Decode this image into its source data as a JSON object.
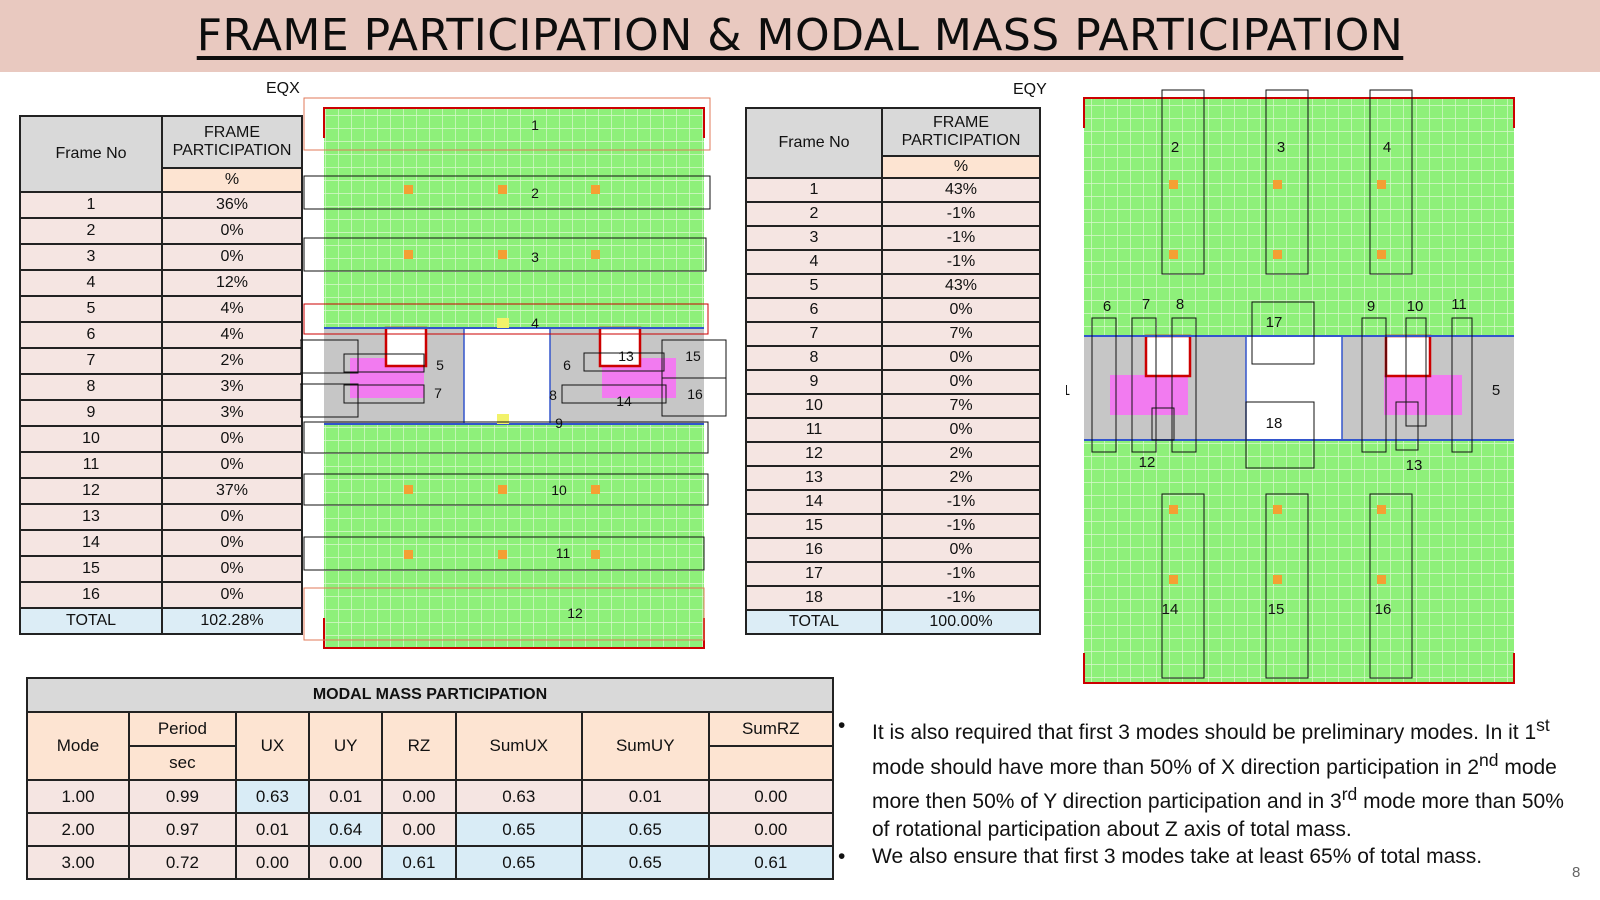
{
  "title": "FRAME PARTICIPATION & MODAL MASS PARTICIPATION",
  "eqx": {
    "caption": "EQX",
    "header": {
      "frame_no": "Frame No",
      "frame_participation": "FRAME PARTICIPATION",
      "unit": "%"
    },
    "rows": [
      {
        "frame": "1",
        "value": "36%"
      },
      {
        "frame": "2",
        "value": "0%"
      },
      {
        "frame": "3",
        "value": "0%"
      },
      {
        "frame": "4",
        "value": "12%"
      },
      {
        "frame": "5",
        "value": "4%"
      },
      {
        "frame": "6",
        "value": "4%"
      },
      {
        "frame": "7",
        "value": "2%"
      },
      {
        "frame": "8",
        "value": "3%"
      },
      {
        "frame": "9",
        "value": "3%"
      },
      {
        "frame": "10",
        "value": "0%"
      },
      {
        "frame": "11",
        "value": "0%"
      },
      {
        "frame": "12",
        "value": "37%"
      },
      {
        "frame": "13",
        "value": "0%"
      },
      {
        "frame": "14",
        "value": "0%"
      },
      {
        "frame": "15",
        "value": "0%"
      },
      {
        "frame": "16",
        "value": "0%"
      }
    ],
    "total": {
      "label": "TOTAL",
      "value": "102.28%"
    },
    "plan_labels": [
      "1",
      "2",
      "3",
      "4",
      "5",
      "6",
      "7",
      "8",
      "9",
      "10",
      "11",
      "12",
      "13",
      "14",
      "15",
      "16"
    ]
  },
  "eqy": {
    "caption": "EQY",
    "header": {
      "frame_no": "Frame No",
      "frame_participation": "FRAME PARTICIPATION",
      "unit": "%"
    },
    "rows": [
      {
        "frame": "1",
        "value": "43%"
      },
      {
        "frame": "2",
        "value": "-1%"
      },
      {
        "frame": "3",
        "value": "-1%"
      },
      {
        "frame": "4",
        "value": "-1%"
      },
      {
        "frame": "5",
        "value": "43%"
      },
      {
        "frame": "6",
        "value": "0%"
      },
      {
        "frame": "7",
        "value": "7%"
      },
      {
        "frame": "8",
        "value": "0%"
      },
      {
        "frame": "9",
        "value": "0%"
      },
      {
        "frame": "10",
        "value": "7%"
      },
      {
        "frame": "11",
        "value": "0%"
      },
      {
        "frame": "12",
        "value": "2%"
      },
      {
        "frame": "13",
        "value": "2%"
      },
      {
        "frame": "14",
        "value": "-1%"
      },
      {
        "frame": "15",
        "value": "-1%"
      },
      {
        "frame": "16",
        "value": "0%"
      },
      {
        "frame": "17",
        "value": "-1%"
      },
      {
        "frame": "18",
        "value": "-1%"
      }
    ],
    "total": {
      "label": "TOTAL",
      "value": "100.00%"
    },
    "plan_labels": [
      "1",
      "2",
      "3",
      "4",
      "5",
      "6",
      "7",
      "8",
      "9",
      "10",
      "11",
      "12",
      "13",
      "14",
      "15",
      "16",
      "17",
      "18"
    ]
  },
  "modal": {
    "title": "MODAL MASS PARTICIPATION",
    "headers": {
      "mode": "Mode",
      "period": "Period",
      "period_unit": "sec",
      "ux": "UX",
      "uy": "UY",
      "rz": "RZ",
      "sumux": "SumUX",
      "sumuy": "SumUY",
      "sumrz": "SumRZ"
    },
    "rows": [
      {
        "mode": "1.00",
        "period": "0.99",
        "ux": "0.63",
        "uy": "0.01",
        "rz": "0.00",
        "sumux": "0.63",
        "sumuy": "0.01",
        "sumrz": "0.00"
      },
      {
        "mode": "2.00",
        "period": "0.97",
        "ux": "0.01",
        "uy": "0.64",
        "rz": "0.00",
        "sumux": "0.65",
        "sumuy": "0.65",
        "sumrz": "0.00"
      },
      {
        "mode": "3.00",
        "period": "0.72",
        "ux": "0.00",
        "uy": "0.00",
        "rz": "0.61",
        "sumux": "0.65",
        "sumuy": "0.65",
        "sumrz": "0.61"
      }
    ]
  },
  "notes": {
    "bullet": "•",
    "p1_a": "It is also required that first 3 modes should be preliminary modes. In it 1",
    "p1_sup1": "st",
    "p1_b": " mode should have more than 50% of X direction participation in 2",
    "p1_sup2": "nd",
    "p1_c": " mode more then 50% of Y direction participation and in 3",
    "p1_sup3": "rd",
    "p1_d": " mode more than 50% of rotational participation about Z axis of total mass.",
    "p2": "We also ensure that first 3 modes take at least 65% of total mass."
  },
  "page_number": "8",
  "colors": {
    "title_band": "#e9c9c0",
    "slab_green": "#8ef07a",
    "core_grey": "#c6c6c6",
    "wall_magenta": "#f27bf0",
    "header_grey": "#d9d9d9",
    "peach": "#fde4d2",
    "row_pink": "#f5e5e2",
    "total_blue": "#dcedf6"
  }
}
